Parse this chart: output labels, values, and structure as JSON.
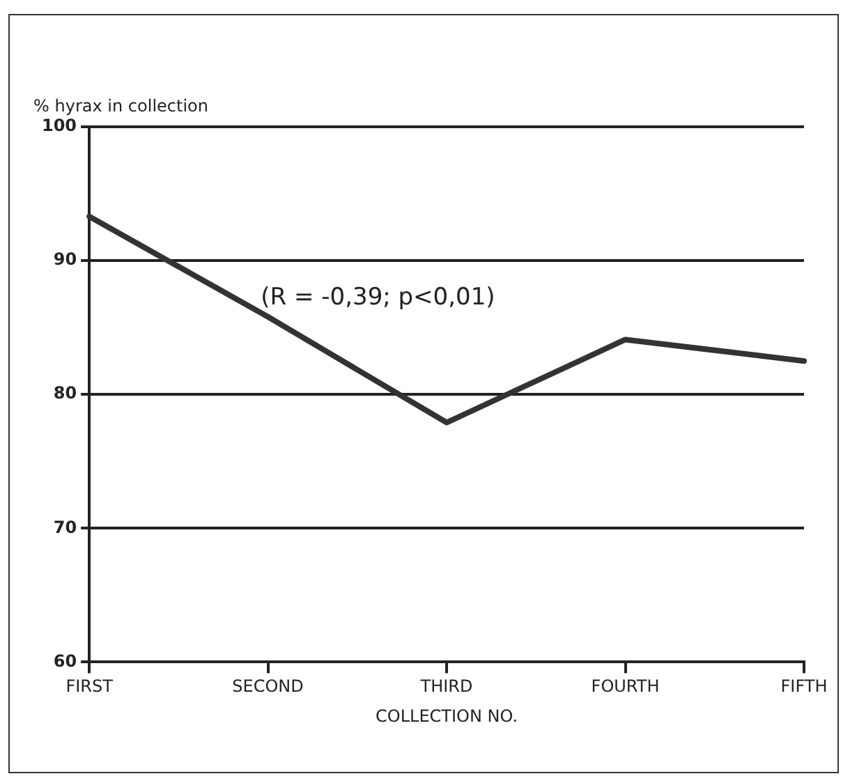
{
  "chart_data": {
    "type": "line",
    "ylabel": "% hyrax in collection",
    "xlabel": "COLLECTION NO.",
    "categories": [
      "FIRST",
      "SECOND",
      "THIRD",
      "FOURTH",
      "FIFTH"
    ],
    "series": [
      {
        "color": "#333333",
        "values": [
          93.3,
          85.8,
          77.9,
          84.1,
          82.5
        ]
      }
    ],
    "ylim": [
      60,
      100
    ],
    "yticks": [
      60,
      70,
      80,
      90,
      100
    ],
    "grid": "y",
    "legend": false,
    "marker": "none",
    "line_style": "solid",
    "annotations": [
      "(R = -0,39; p<0,01)"
    ]
  }
}
